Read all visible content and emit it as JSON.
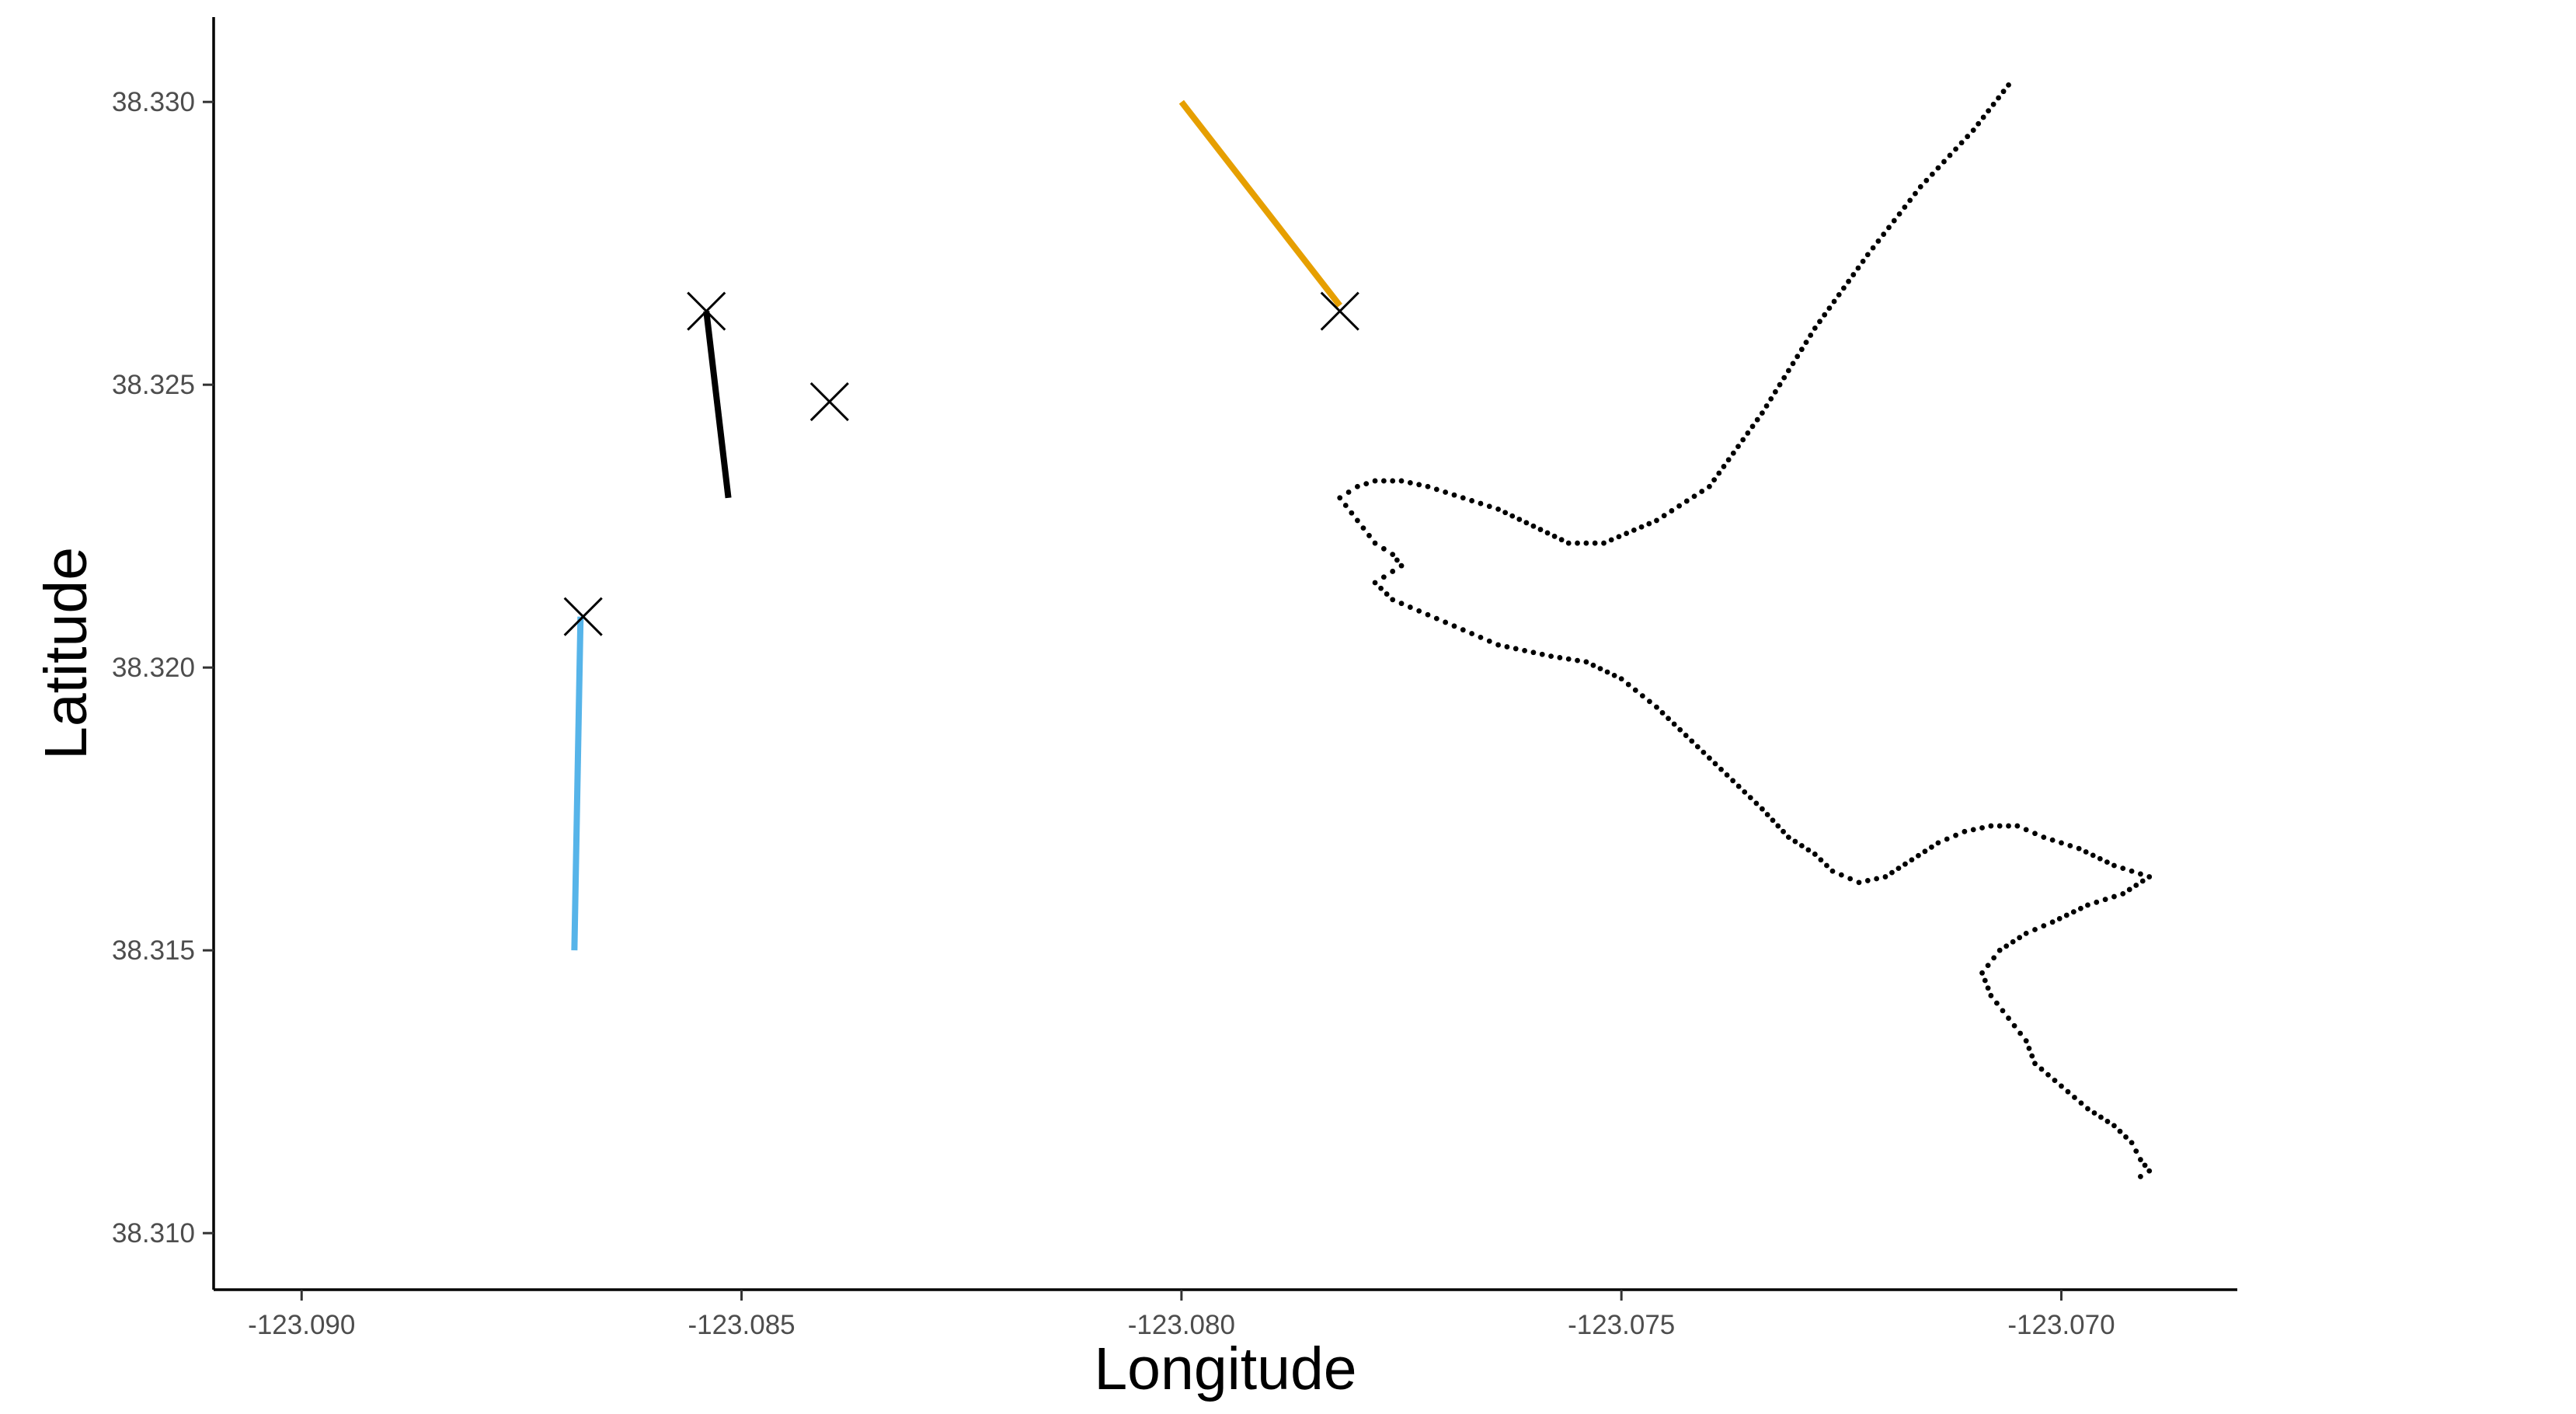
{
  "chart_data": {
    "type": "scatter",
    "title": "",
    "xlabel": "Longitude",
    "ylabel": "Latitude",
    "xlim": [
      -123.091,
      -123.068
    ],
    "ylim": [
      38.309,
      38.3315
    ],
    "x_ticks": [
      -123.09,
      -123.085,
      -123.08,
      -123.075,
      -123.07
    ],
    "x_tick_labels": [
      "-123.090",
      "-123.085",
      "-123.080",
      "-123.075",
      "-123.070"
    ],
    "y_ticks": [
      38.31,
      38.315,
      38.32,
      38.325,
      38.33
    ],
    "y_tick_labels": [
      "38.310",
      "38.315",
      "38.320",
      "38.325",
      "38.330"
    ],
    "grid": false,
    "legend": "none",
    "segments": [
      {
        "color": "#E69F00",
        "x": [
          -123.08,
          -123.0782
        ],
        "y": [
          38.33,
          38.3264
        ]
      },
      {
        "color": "#000000",
        "x": [
          -123.08515,
          -123.0854
        ],
        "y": [
          38.323,
          38.3263
        ]
      },
      {
        "color": "#56B4E9",
        "x": [
          -123.0869,
          -123.08683
        ],
        "y": [
          38.315,
          38.3209
        ]
      }
    ],
    "x_markers": [
      {
        "x": -123.0854,
        "y": 38.3263
      },
      {
        "x": -123.084,
        "y": 38.3247
      },
      {
        "x": -123.0868,
        "y": 38.3209
      },
      {
        "x": -123.0782,
        "y": 38.3263
      }
    ],
    "track": {
      "color": "#000000",
      "x": [
        -123.0706,
        -123.071,
        -123.0716,
        -123.0722,
        -123.0728,
        -123.0734,
        -123.074,
        -123.0746,
        -123.0752,
        -123.0756,
        -123.076,
        -123.0764,
        -123.0768,
        -123.0772,
        -123.0775,
        -123.0778,
        -123.078,
        -123.0782,
        -123.078,
        -123.0778,
        -123.0776,
        -123.0775,
        -123.0777,
        -123.0778,
        -123.0776,
        -123.0773,
        -123.077,
        -123.0767,
        -123.0764,
        -123.0761,
        -123.0758,
        -123.0754,
        -123.075,
        -123.0746,
        -123.0742,
        -123.0738,
        -123.0734,
        -123.0731,
        -123.0728,
        -123.0726,
        -123.0723,
        -123.072,
        -123.0717,
        -123.0714,
        -123.0711,
        -123.0708,
        -123.0705,
        -123.0702,
        -123.0698,
        -123.0694,
        -123.069,
        -123.0693,
        -123.0697,
        -123.0701,
        -123.0704,
        -123.0707,
        -123.0709,
        -123.0708,
        -123.0706,
        -123.0704,
        -123.0703,
        -123.07,
        -123.0697,
        -123.0694,
        -123.0692,
        -123.0691,
        -123.069,
        -123.0691
      ],
      "y": [
        38.3303,
        38.3295,
        38.3285,
        38.3273,
        38.326,
        38.3245,
        38.3232,
        38.3226,
        38.3222,
        38.3222,
        38.3225,
        38.3228,
        38.323,
        38.3232,
        38.3233,
        38.3233,
        38.3232,
        38.323,
        38.3226,
        38.3222,
        38.322,
        38.3218,
        38.3216,
        38.3215,
        38.3212,
        38.321,
        38.3208,
        38.3206,
        38.3204,
        38.3203,
        38.3202,
        38.3201,
        38.3198,
        38.3193,
        38.3187,
        38.3181,
        38.3175,
        38.317,
        38.3167,
        38.3164,
        38.3162,
        38.3163,
        38.3166,
        38.3169,
        38.3171,
        38.3172,
        38.3172,
        38.317,
        38.3168,
        38.3165,
        38.3163,
        38.316,
        38.3158,
        38.3155,
        38.3153,
        38.315,
        38.3146,
        38.3142,
        38.3138,
        38.3134,
        38.313,
        38.3126,
        38.3122,
        38.3119,
        38.3116,
        38.3113,
        38.3111,
        38.311
      ]
    }
  }
}
